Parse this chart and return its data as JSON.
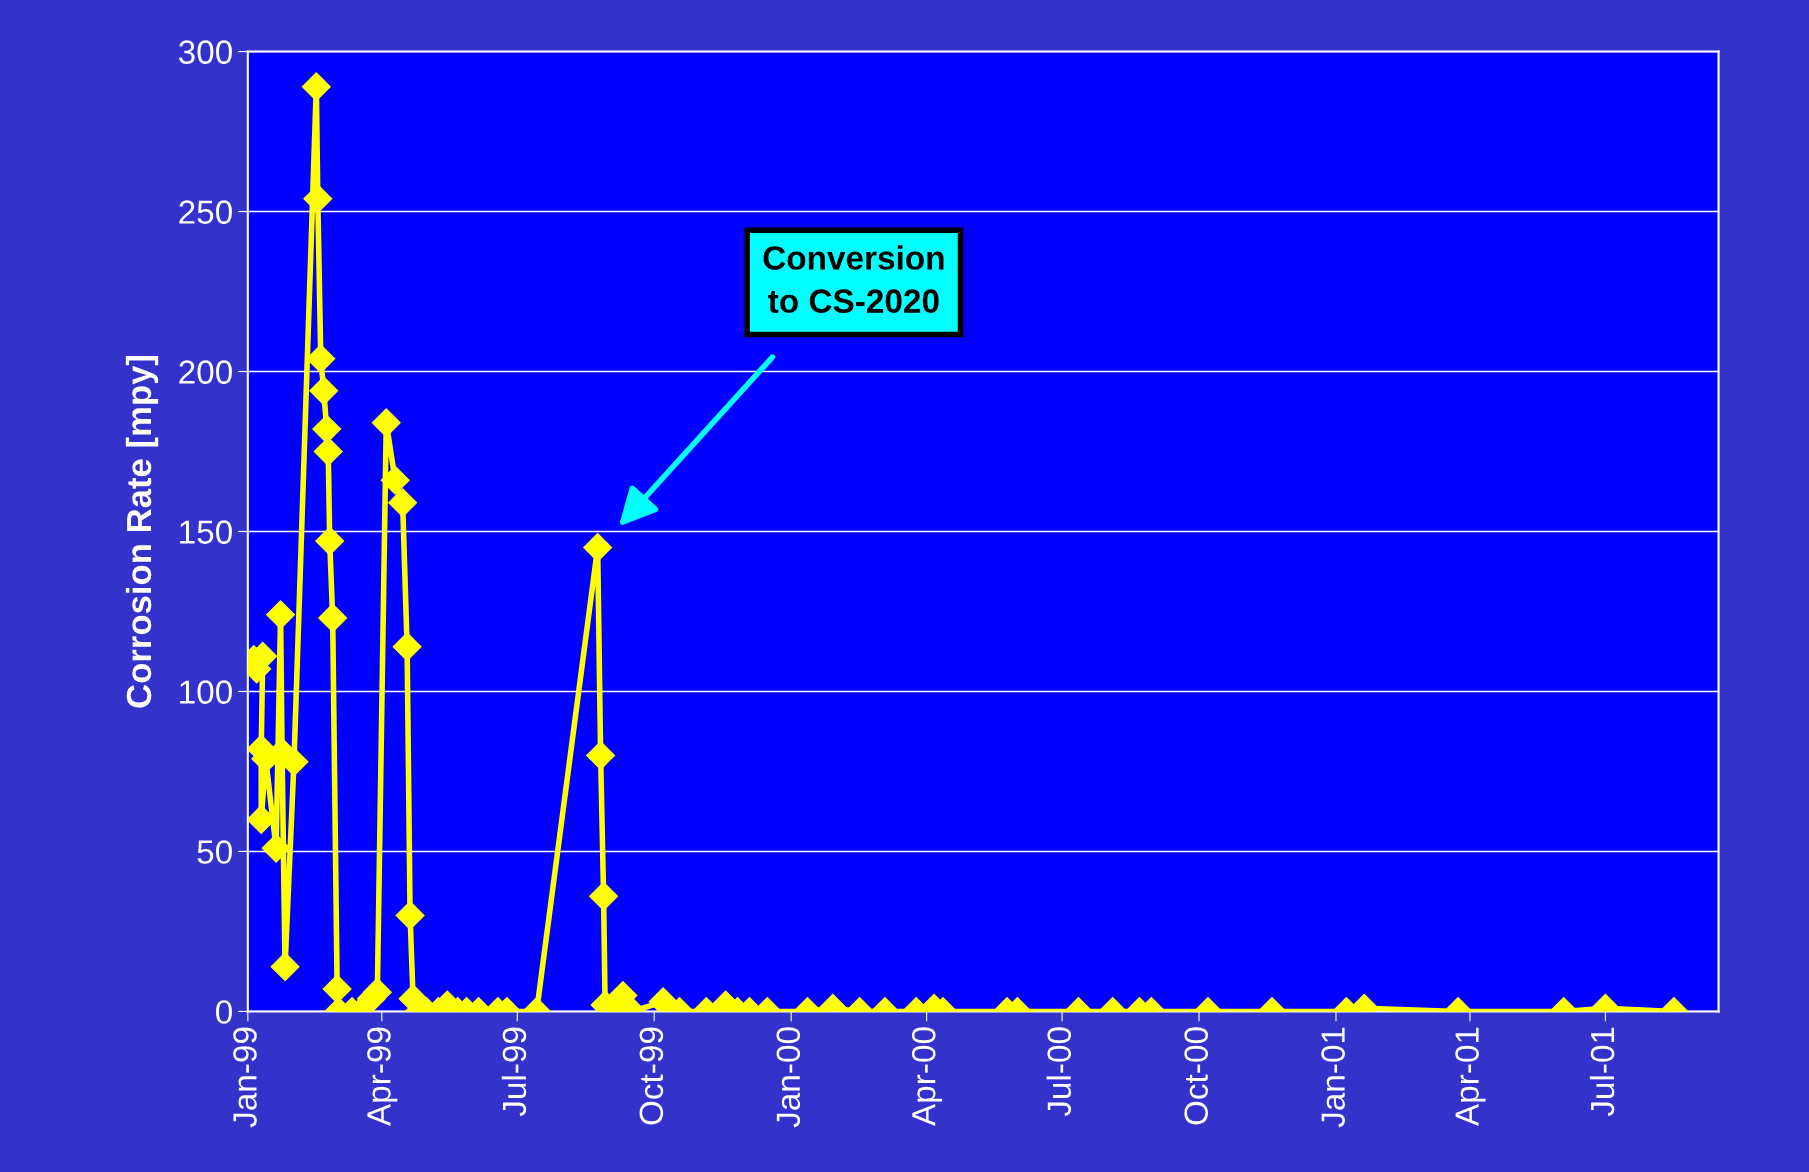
{
  "chart_data": {
    "type": "line",
    "ylabel": "Corrosion Rate [mpy]",
    "x": [
      "1999-01-05",
      "1999-01-07",
      "1999-01-11",
      "1999-01-10",
      "1999-01-10",
      "1999-01-13",
      "1999-01-20",
      "1999-01-23",
      "1999-01-24",
      "1999-01-26",
      "1999-02-01",
      "1999-02-16",
      "1999-02-17",
      "1999-02-19",
      "1999-02-21",
      "1999-02-23",
      "1999-02-24",
      "1999-02-25",
      "1999-02-27",
      "1999-03-02",
      "1999-03-03",
      "1999-03-12",
      "1999-03-18",
      "1999-03-25",
      "1999-03-29",
      "1999-04-04",
      "1999-04-10",
      "1999-04-15",
      "1999-04-18",
      "1999-04-20",
      "1999-04-22",
      "1999-04-26",
      "1999-05-01",
      "1999-05-09",
      "1999-05-15",
      "1999-05-22",
      "1999-05-28",
      "1999-06-05",
      "1999-06-18",
      "1999-06-24",
      "1999-07-14",
      "1999-08-24",
      "1999-08-26",
      "1999-08-28",
      "1999-08-29",
      "1999-09-04",
      "1999-09-10",
      "1999-09-16",
      "1999-10-07",
      "1999-10-18",
      "1999-11-05",
      "1999-11-18",
      "1999-11-26",
      "1999-12-04",
      "1999-12-16",
      "2000-01-12",
      "2000-01-29",
      "2000-02-16",
      "2000-03-04",
      "2000-03-25",
      "2000-04-06",
      "2000-04-12",
      "2000-05-25",
      "2000-06-01",
      "2000-07-12",
      "2000-08-04",
      "2000-08-22",
      "2000-08-30",
      "2000-10-07",
      "2000-11-19",
      "2001-01-08",
      "2001-01-20",
      "2001-03-24",
      "2001-06-03",
      "2001-07-01",
      "2001-08-16"
    ],
    "series": [
      {
        "color": "#ffff00",
        "values": [
          110,
          107,
          111,
          82,
          60,
          79,
          51,
          124,
          81,
          14,
          78,
          289,
          254,
          204,
          194,
          182,
          175,
          147,
          123,
          7,
          0,
          0,
          0,
          4,
          6,
          184,
          166,
          159,
          114,
          30,
          4,
          0,
          0,
          0,
          2,
          0,
          0,
          0,
          0,
          0,
          0,
          145,
          80,
          36,
          2,
          0,
          5,
          0,
          3,
          0,
          0,
          2,
          0,
          0,
          0,
          0,
          1,
          0,
          0,
          0,
          1,
          0,
          0,
          0,
          0,
          0,
          0,
          0,
          0,
          0,
          0,
          1,
          0,
          0,
          1,
          0
        ]
      }
    ],
    "xlim": [
      "1999-01-01",
      "2001-09-15"
    ],
    "xticks": [
      {
        "value": "1999-01-01",
        "label": "Jan-99"
      },
      {
        "value": "1999-04-01",
        "label": "Apr-99"
      },
      {
        "value": "1999-07-01",
        "label": "Jul-99"
      },
      {
        "value": "1999-10-01",
        "label": "Oct-99"
      },
      {
        "value": "2000-01-01",
        "label": "Jan-00"
      },
      {
        "value": "2000-04-01",
        "label": "Apr-00"
      },
      {
        "value": "2000-07-01",
        "label": "Jul-00"
      },
      {
        "value": "2000-10-01",
        "label": "Oct-00"
      },
      {
        "value": "2001-01-01",
        "label": "Jan-01"
      },
      {
        "value": "2001-04-01",
        "label": "Apr-01"
      },
      {
        "value": "2001-07-01",
        "label": "Jul-01"
      }
    ],
    "ylim": [
      0,
      300
    ],
    "yticks": [
      0,
      50,
      100,
      150,
      200,
      250,
      300
    ],
    "grid": "y",
    "marker": "diamond",
    "line_style": "solid",
    "annotations": [
      "Conversion\nto CS-2020"
    ]
  }
}
